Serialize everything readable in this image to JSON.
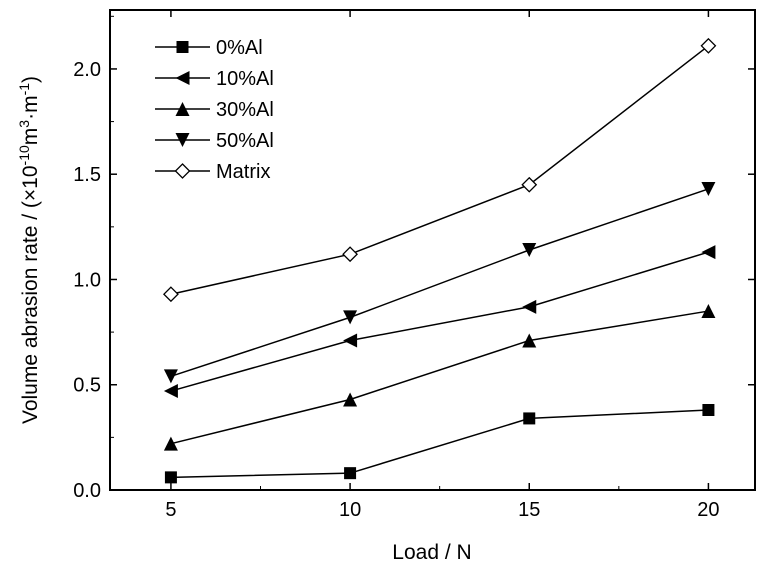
{
  "chart_data": {
    "type": "line",
    "xlabel": "Load / N",
    "ylabel_main": "Volume abrasion rate / (×10",
    "ylabel_exp1": "-10",
    "ylabel_mid": "m",
    "ylabel_exp2": "3",
    "ylabel_mid2": "·m",
    "ylabel_exp3": "-1",
    "ylabel_close": ")",
    "xlim": [
      3.3,
      21.3
    ],
    "ylim": [
      0,
      2.28
    ],
    "xticks": [
      5,
      10,
      15,
      20
    ],
    "xtick_labels": [
      "5",
      "10",
      "15",
      "20"
    ],
    "yticks": [
      0,
      0.5,
      1.0,
      1.5,
      2.0
    ],
    "ytick_labels": [
      "0.0",
      "0.5",
      "1.0",
      "1.5",
      "2.0"
    ],
    "x": [
      5,
      10,
      15,
      20
    ],
    "legend_position": "top-left",
    "series": [
      {
        "name": "0%Al",
        "marker": "square",
        "values": [
          0.06,
          0.08,
          0.34,
          0.38
        ]
      },
      {
        "name": "10%Al",
        "marker": "triangle-left",
        "values": [
          0.47,
          0.71,
          0.87,
          1.13
        ]
      },
      {
        "name": "30%Al",
        "marker": "triangle-up",
        "values": [
          0.22,
          0.43,
          0.71,
          0.85
        ]
      },
      {
        "name": "50%Al",
        "marker": "triangle-down",
        "values": [
          0.54,
          0.82,
          1.14,
          1.43
        ]
      },
      {
        "name": "Matrix",
        "marker": "diamond-open",
        "values": [
          0.93,
          1.12,
          1.45,
          2.11
        ]
      }
    ]
  }
}
